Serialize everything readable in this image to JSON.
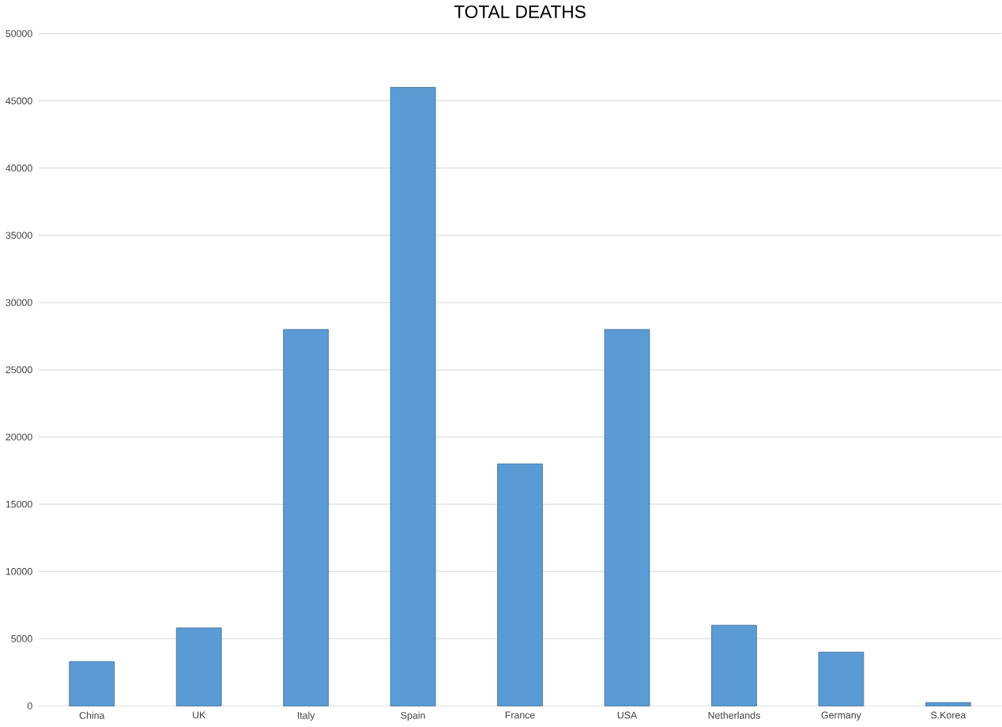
{
  "chart_data": {
    "type": "bar",
    "title": "TOTAL DEATHS",
    "categories": [
      "China",
      "UK",
      "Italy",
      "Spain",
      "France",
      "USA",
      "Netherlands",
      "Germany",
      "S.Korea"
    ],
    "values": [
      3300,
      5800,
      28000,
      46000,
      18000,
      28000,
      6000,
      4000,
      250
    ],
    "color": "#5b9bd5",
    "ylim": [
      0,
      50000
    ],
    "yticks": [
      0,
      5000,
      10000,
      15000,
      20000,
      25000,
      30000,
      35000,
      40000,
      45000,
      50000
    ],
    "grid": "y"
  }
}
